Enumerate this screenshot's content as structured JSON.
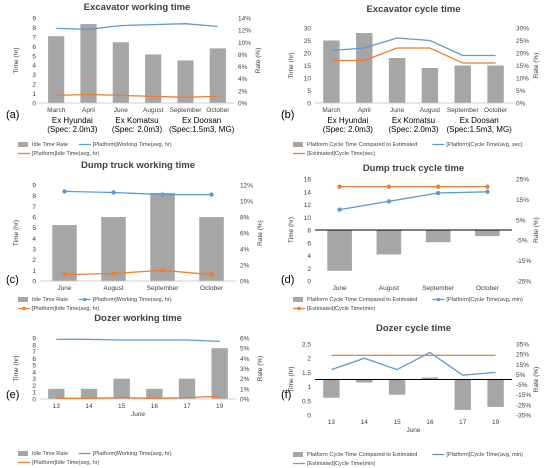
{
  "chart_data": [
    {
      "panel": "(a)",
      "type": "bar",
      "title": "Excavator working time",
      "categories": [
        "March",
        "April",
        "June",
        "August",
        "September",
        "October"
      ],
      "ylabel": "Time (hr)",
      "y2label": "Rate (%)",
      "ylim": [
        0,
        9
      ],
      "yticks": [
        0,
        1,
        2,
        3,
        4,
        5,
        6,
        7,
        8,
        9
      ],
      "y2lim": [
        0,
        14
      ],
      "y2ticks": [
        "0%",
        "2%",
        "4%",
        "6%",
        "8%",
        "10%",
        "12%",
        "14%"
      ],
      "y2tickvals": [
        0,
        2,
        4,
        6,
        8,
        10,
        12,
        14
      ],
      "bars": {
        "name": "Idle Time Rate",
        "axis": "right",
        "values": [
          11.0,
          13.0,
          10.0,
          8.0,
          7.0,
          9.0
        ]
      },
      "lines": [
        {
          "name": "[Platform]Working Time(avg, hr)",
          "axis": "left",
          "color": "#5b9bd5",
          "values": [
            7.9,
            7.8,
            8.2,
            8.3,
            8.4,
            8.1
          ]
        },
        {
          "name": "[Platform]Idle Time(avg, hr)",
          "axis": "left",
          "color": "#ed7d31",
          "values": [
            0.8,
            0.9,
            0.8,
            0.7,
            0.6,
            0.7
          ]
        }
      ],
      "groups": [
        "Ex Hyundai (Spec: 2.0m3)",
        "Ex Komatsu (Spec: 2.0m3)",
        "Ex Doosan (Spec:1.5m3, MG)"
      ],
      "legend_position": "bottom"
    },
    {
      "panel": "(b)",
      "type": "bar",
      "title": "Excavator cycle time",
      "categories": [
        "March",
        "April",
        "June",
        "August",
        "September",
        "October"
      ],
      "ylabel": "Time (hr)",
      "y2label": "Rate (%)",
      "ylim": [
        0,
        30
      ],
      "yticks": [
        0,
        5,
        10,
        15,
        20,
        25,
        30
      ],
      "y2lim": [
        0,
        30
      ],
      "y2ticks": [
        "0%",
        "5%",
        "10%",
        "15%",
        "20%",
        "25%",
        "30%"
      ],
      "y2tickvals": [
        0,
        5,
        10,
        15,
        20,
        25,
        30
      ],
      "bars": {
        "name": "Platform Cycle Time Compared to Estimated",
        "axis": "right",
        "values": [
          25,
          28,
          18,
          14,
          15,
          15
        ]
      },
      "lines": [
        {
          "name": "[Platform]Cycle Time(avg, sec)",
          "axis": "left",
          "color": "#5b9bd5",
          "values": [
            21,
            22,
            26,
            25,
            19,
            19
          ]
        },
        {
          "name": "[Estimated]Cycle Time(sec)",
          "axis": "left",
          "color": "#ed7d31",
          "values": [
            17,
            17,
            22,
            22,
            16,
            16
          ]
        }
      ],
      "groups": [
        "Ex Hyundai (Spec: 2.0m3)",
        "Ex Komatsu (Spec: 2.0m3)",
        "Ex Doosan (Spec:1.5m3, MG)"
      ],
      "legend_position": "bottom"
    },
    {
      "panel": "(c)",
      "type": "bar",
      "title": "Dump truck working time",
      "categories": [
        "June",
        "August",
        "September",
        "October"
      ],
      "ylabel": "Time (hr)",
      "y2label": "Rate (%)",
      "ylim": [
        0,
        9
      ],
      "yticks": [
        0,
        1,
        2,
        3,
        4,
        5,
        6,
        7,
        8,
        9
      ],
      "y2lim": [
        0,
        12
      ],
      "y2ticks": [
        "0%",
        "2%",
        "4%",
        "6%",
        "8%",
        "10%",
        "12%"
      ],
      "y2tickvals": [
        0,
        2,
        4,
        6,
        8,
        10,
        12
      ],
      "bars": {
        "name": "Idle Time Rate",
        "axis": "right",
        "values": [
          7.0,
          8.0,
          11.0,
          8.0
        ]
      },
      "lines": [
        {
          "name": "[Platform]Working Time(avg, hr)",
          "axis": "left",
          "color": "#5b9bd5",
          "markers": true,
          "values": [
            8.4,
            8.3,
            8.1,
            8.1
          ]
        },
        {
          "name": "[Platform]Idle Time(avg, hr)",
          "axis": "left",
          "color": "#ed7d31",
          "markers": true,
          "values": [
            0.6,
            0.7,
            1.0,
            0.6
          ]
        }
      ],
      "legend_position": "bottom"
    },
    {
      "panel": "(d)",
      "type": "bar",
      "title": "Dump truck cycle time",
      "categories": [
        "June",
        "August",
        "September",
        "October"
      ],
      "ylabel": "Time (hr)",
      "y2label": "Rate (%)",
      "ylim": [
        0,
        16
      ],
      "yticks": [
        0,
        2,
        4,
        6,
        8,
        10,
        12,
        14,
        16
      ],
      "y2lim": [
        -25,
        25
      ],
      "y2ticks": [
        "-25%",
        "-15%",
        "-5%",
        "5%",
        "15%",
        "25%"
      ],
      "y2tickvals": [
        -25,
        -15,
        -5,
        5,
        15,
        25
      ],
      "bars": {
        "name": "Platform Cycle Time Compared to Estimated",
        "axis": "right",
        "values": [
          -20,
          -12,
          -6,
          -3
        ]
      },
      "lines": [
        {
          "name": "[Platform]Cycle Time(avg, min)",
          "axis": "left",
          "color": "#5b9bd5",
          "markers": true,
          "values": [
            11.2,
            12.5,
            13.8,
            14.0
          ]
        },
        {
          "name": "[Estimated]Cycle Time(min)",
          "axis": "left",
          "color": "#ed7d31",
          "markers": true,
          "values": [
            14.8,
            14.8,
            14.8,
            14.8
          ]
        }
      ],
      "legend_position": "bottom"
    },
    {
      "panel": "(e)",
      "type": "bar",
      "title": "Dozer working time",
      "categories": [
        "13",
        "14",
        "15",
        "16",
        "17",
        "19"
      ],
      "xlabel": "June",
      "ylabel": "Time (hr)",
      "y2label": "Rate (%)",
      "ylim": [
        0,
        9
      ],
      "yticks": [
        0,
        1,
        2,
        3,
        4,
        5,
        6,
        7,
        8,
        9
      ],
      "y2lim": [
        0,
        6
      ],
      "y2ticks": [
        "0%",
        "1%",
        "2%",
        "3%",
        "4%",
        "5%",
        "6%"
      ],
      "y2tickvals": [
        0,
        1,
        2,
        3,
        4,
        5,
        6
      ],
      "bars": {
        "name": "Idle Time Rate",
        "axis": "right",
        "values": [
          1.0,
          1.0,
          2.0,
          1.0,
          2.0,
          5.0
        ]
      },
      "lines": [
        {
          "name": "[Platform]Working Time(avg, hr)",
          "axis": "left",
          "color": "#5b9bd5",
          "values": [
            8.8,
            8.8,
            8.7,
            8.7,
            8.7,
            8.5
          ]
        },
        {
          "name": "[Platform]Idle Time(avg, hr)",
          "axis": "left",
          "color": "#ed7d31",
          "values": [
            0.1,
            0.1,
            0.2,
            0.1,
            0.2,
            0.4
          ]
        }
      ],
      "legend_position": "bottom"
    },
    {
      "panel": "(f)",
      "type": "bar",
      "title": "Dozer cycle time",
      "categories": [
        "13",
        "14",
        "15",
        "16",
        "17",
        "19"
      ],
      "xlabel": "June",
      "ylabel": "Time (hr)",
      "y2label": "Rate (%)",
      "ylim": [
        0,
        2.5
      ],
      "yticks": [
        "0",
        "0.5",
        "1",
        "1.5",
        "2",
        "2.5"
      ],
      "ytickvals": [
        0,
        0.5,
        1,
        1.5,
        2,
        2.5
      ],
      "y2lim": [
        -35,
        35
      ],
      "y2ticks": [
        "-35%",
        "-25%",
        "-15%",
        "-5%",
        "5%",
        "15%",
        "25%",
        "35%"
      ],
      "y2tickvals": [
        -35,
        -25,
        -15,
        -5,
        5,
        15,
        25,
        35
      ],
      "bars": {
        "name": "Platform Cycle Time Compared to Estimated",
        "axis": "right",
        "values": [
          -18,
          -3,
          -15,
          2,
          -30,
          -27
        ]
      },
      "lines": [
        {
          "name": "[Platform]Cycle Time(avg, min)",
          "axis": "left",
          "color": "#5b9bd5",
          "values": [
            1.6,
            2.0,
            1.6,
            2.2,
            1.4,
            1.5
          ]
        },
        {
          "name": "[Estimated]Cycle Time(min)",
          "axis": "left",
          "color": "#ed7d31",
          "values": [
            2.1,
            2.1,
            2.1,
            2.1,
            2.1,
            2.1
          ]
        }
      ],
      "legend_position": "bottom"
    }
  ]
}
